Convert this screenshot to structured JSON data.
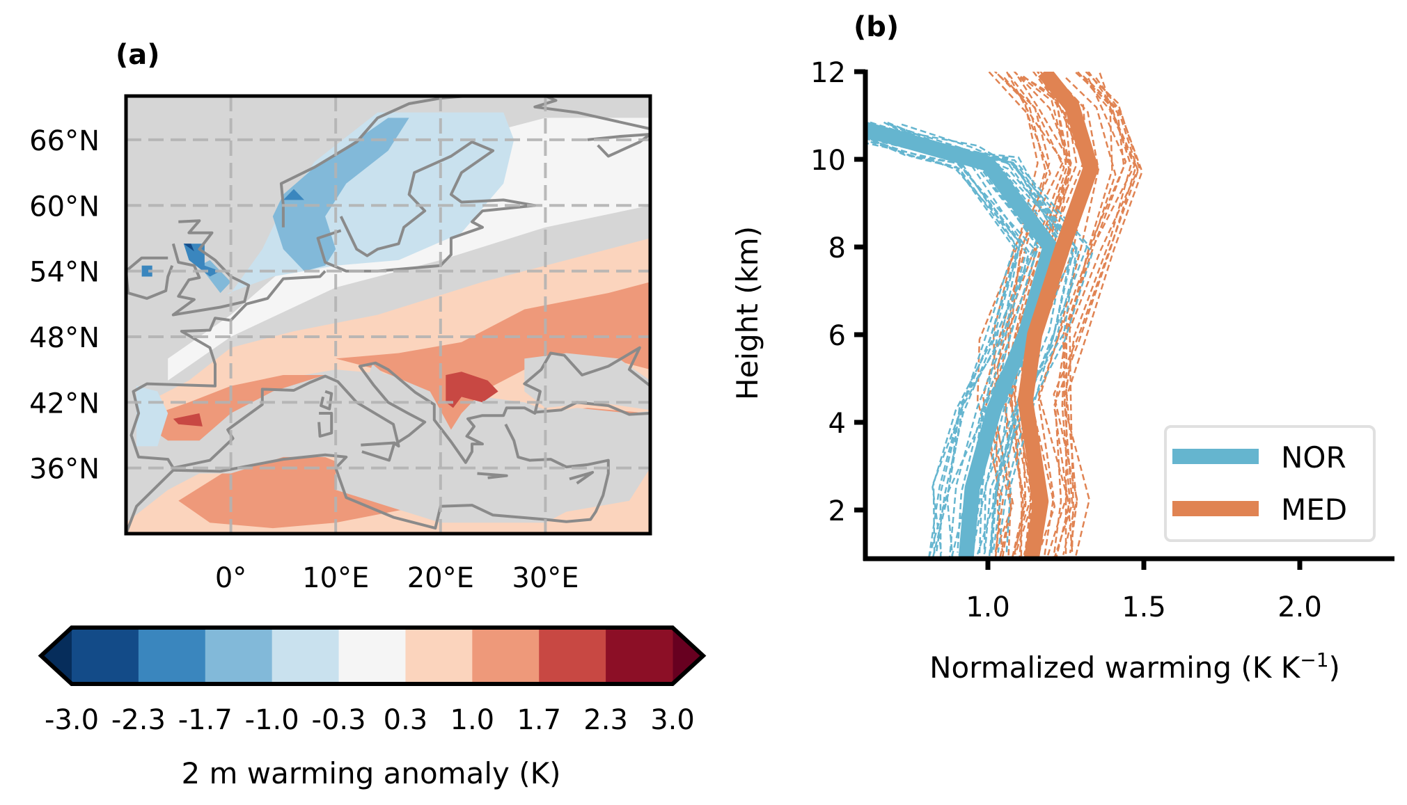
{
  "chart_data": [
    {
      "type": "heatmap",
      "subtype": "filled-contour-map",
      "panel_label": "(a)",
      "region": "Europe",
      "lon_range": [
        -10,
        40
      ],
      "lat_range": [
        30,
        70
      ],
      "lon_ticks": [
        0,
        10,
        20,
        30
      ],
      "lon_tick_labels": [
        "0°",
        "10°E",
        "20°E",
        "30°E"
      ],
      "lat_ticks": [
        66,
        60,
        54,
        48,
        42,
        36
      ],
      "lat_tick_labels": [
        "66°N",
        "60°N",
        "54°N",
        "48°N",
        "42°N",
        "36°N"
      ],
      "gridlines": "dashed",
      "land_mask_color": "#d6d6d6",
      "coastline_color": "#8a8a8a",
      "gridline_color": "#b3b3b3",
      "colorbar": {
        "label": "2 m warming anomaly (K)",
        "levels": [
          -3.0,
          -2.3,
          -1.7,
          -1.0,
          -0.3,
          0.3,
          1.0,
          1.7,
          2.3,
          3.0
        ],
        "tick_labels": [
          "-3.0",
          "-2.3",
          "-1.7",
          "-1.0",
          "-0.3",
          "0.3",
          "1.0",
          "1.7",
          "2.3",
          "3.0"
        ],
        "colors": [
          "#134b88",
          "#3a86be",
          "#82b9d9",
          "#c9e1ee",
          "#f5f5f5",
          "#fbd4bd",
          "#ee997a",
          "#c84843",
          "#8c0f26"
        ],
        "extend_min_color": "#062d5b",
        "extend_max_color": "#670020",
        "extend": "both"
      },
      "regions_described": [
        {
          "name": "Scandinavia / North Sea",
          "anomaly_class": "-1.7 to -1.0",
          "color_index": 2
        },
        {
          "name": "Norway coast spots",
          "anomaly_class": "-2.3 to -1.7",
          "color_index": 1
        },
        {
          "name": "Finland / Baltic",
          "anomaly_class": "-1.0 to -0.3",
          "color_index": 3
        },
        {
          "name": "Great Britain",
          "anomaly_class": "-2.3 to -1.0",
          "color_index": 1
        },
        {
          "name": "Ireland",
          "anomaly_class": "-2.3 to -1.7",
          "color_index": 1
        },
        {
          "name": "Central Europe band",
          "anomaly_class": "-0.3 to 0.3",
          "color_index": 4
        },
        {
          "name": "Southern Europe band",
          "anomaly_class": "0.3 to 1.0",
          "color_index": 5
        },
        {
          "name": "Balkans / Eastern Europe",
          "anomaly_class": "1.0 to 1.7",
          "color_index": 6
        },
        {
          "name": "Balkans core",
          "anomaly_class": "1.7 to 2.3",
          "color_index": 7
        },
        {
          "name": "Iberia core",
          "anomaly_class": "1.7 to 2.3",
          "color_index": 7
        },
        {
          "name": "Anatolia",
          "anomaly_class": "1.0 to 1.7",
          "color_index": 6
        },
        {
          "name": "North Africa",
          "anomaly_class": "1.0 to 1.7",
          "color_index": 6
        }
      ]
    },
    {
      "type": "line",
      "panel_label": "(b)",
      "xlabel": "Normalized warming (K K",
      "xlabel_sup": "−1",
      "xlabel_close": ")",
      "ylabel": "Height (km)",
      "xlim": [
        0.6,
        2.3
      ],
      "ylim": [
        0.9,
        12
      ],
      "xticks": [
        1.0,
        1.5,
        2.0
      ],
      "xtick_labels": [
        "1.0",
        "1.5",
        "2.0"
      ],
      "yticks": [
        2,
        4,
        6,
        8,
        10,
        12
      ],
      "ytick_labels": [
        "2",
        "4",
        "6",
        "8",
        "10",
        "12"
      ],
      "grid": false,
      "legend": {
        "placement": "lower-right",
        "entries": [
          "NOR",
          "MED"
        ]
      },
      "series": [
        {
          "name": "NOR",
          "color": "#65b5cf",
          "style": "mean",
          "x": [
            0.6,
            0.85,
            1.0,
            1.2,
            1.12,
            1.02,
            0.95,
            0.93
          ],
          "y": [
            10.7,
            10.2,
            9.9,
            8.0,
            6.0,
            4.3,
            2.5,
            0.9
          ]
        },
        {
          "name": "MED",
          "color": "#e08352",
          "style": "mean",
          "x": [
            1.18,
            1.27,
            1.33,
            1.24,
            1.15,
            1.12,
            1.17,
            1.14
          ],
          "y": [
            12.0,
            11.2,
            9.8,
            8.0,
            6.0,
            4.5,
            2.2,
            0.9
          ]
        }
      ],
      "member_count_approx": {
        "NOR": 30,
        "MED": 30
      },
      "members_style": "dashed"
    }
  ]
}
